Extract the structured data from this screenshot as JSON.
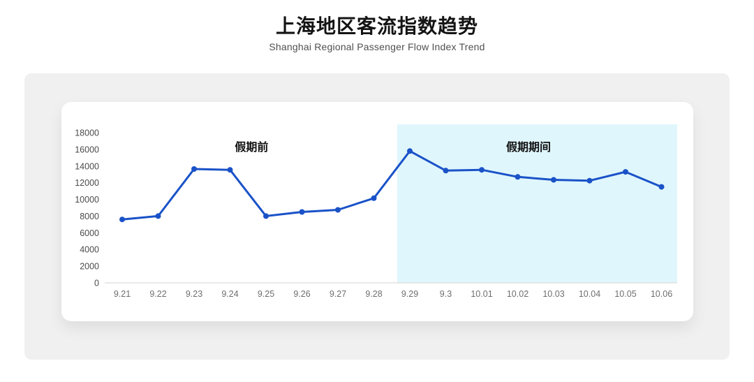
{
  "header": {
    "title": "上海地区客流指数趋势",
    "subtitle": "Shanghai Regional Passenger Flow Index Trend"
  },
  "chart_data": {
    "type": "line",
    "title": "上海地区客流指数趋势",
    "subtitle": "Shanghai Regional Passenger Flow Index Trend",
    "categories": [
      "9.21",
      "9.22",
      "9.23",
      "9.24",
      "9.25",
      "9.26",
      "9.27",
      "9.28",
      "9.29",
      "9.3",
      "10.01",
      "10.02",
      "10.03",
      "10.04",
      "10.05",
      "10.06"
    ],
    "values": [
      7600,
      8000,
      13650,
      13550,
      8000,
      8500,
      8750,
      10150,
      15800,
      13450,
      13550,
      12700,
      12350,
      12250,
      13300,
      11500
    ],
    "xlabel": "",
    "ylabel": "",
    "ylim": [
      0,
      18000
    ],
    "y_ticks": [
      0,
      2000,
      4000,
      6000,
      8000,
      10000,
      12000,
      14000,
      16000,
      18000
    ],
    "grid": false,
    "legend": "none",
    "annotations": [
      {
        "text": "假期前",
        "anchor_index": 3.6
      },
      {
        "text": "假期期间",
        "anchor_index": 11.3
      }
    ],
    "highlight_region": {
      "label": "假期期间",
      "start_index": 7.65,
      "end": "right-edge",
      "color": "#dff6fc"
    },
    "line_color": "#1a52c8",
    "marker": "circle"
  },
  "colors": {
    "accent_blue": "#1a52c8",
    "highlight_cyan": "#dff6fc",
    "panel_gray": "#f0f0f1",
    "card_white": "#ffffff",
    "axis_line": "#dcdcdc",
    "y_tick_text": "#4a4a4a",
    "x_tick_text": "#6e6e6e",
    "annotation_text": "#111111"
  }
}
